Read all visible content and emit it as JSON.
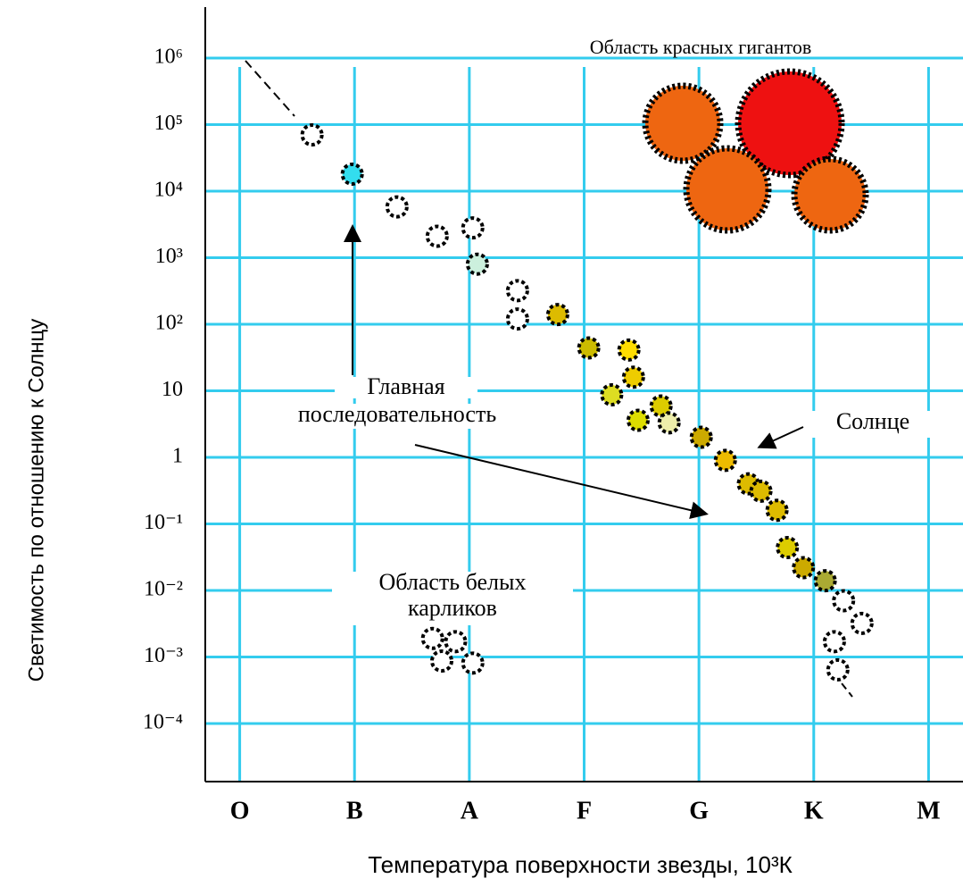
{
  "chart_data": {
    "type": "scatter",
    "xlabel": "Температура поверхности звезды, 10³К",
    "ylabel": "Светимость по отношению к Солнцу",
    "log_y": true,
    "grid": true,
    "xlim": [
      -0.3,
      6.3
    ],
    "xticks": [
      {
        "value": 0,
        "label": "O"
      },
      {
        "value": 1,
        "label": "B"
      },
      {
        "value": 2,
        "label": "A"
      },
      {
        "value": 3,
        "label": "F"
      },
      {
        "value": 4,
        "label": "G"
      },
      {
        "value": 5,
        "label": "K"
      },
      {
        "value": 6,
        "label": "M"
      }
    ],
    "ylim": [
      1e-05,
      5000000
    ],
    "yticks": [
      {
        "value": 1000000,
        "label": "10⁶"
      },
      {
        "value": 100000,
        "label": "10⁵"
      },
      {
        "value": 10000,
        "label": "10⁴"
      },
      {
        "value": 1000,
        "label": "10³"
      },
      {
        "value": 100,
        "label": "10²"
      },
      10,
      1,
      {
        "value": 0.1,
        "label": "10⁻¹"
      },
      {
        "value": 0.01,
        "label": "10⁻²"
      },
      {
        "value": 0.001,
        "label": "10⁻³"
      },
      {
        "value": 0.0001,
        "label": "10⁻⁴"
      }
    ],
    "x": [
      0.63,
      0.98,
      1.37,
      1.72,
      2.03,
      2.07,
      2.42,
      2.42,
      2.77,
      3.04,
      3.39,
      3.43,
      3.24,
      3.67,
      3.47,
      3.74,
      4.02,
      4.23,
      4.43,
      4.54,
      4.68,
      4.77,
      4.91,
      5.1,
      5.26,
      5.42,
      5.18,
      5.21,
      1.68,
      1.88,
      1.76,
      2.03
    ],
    "values": [
      70000,
      18000,
      5800,
      2100,
      2800,
      800,
      320,
      120,
      140,
      44,
      41,
      16,
      8.7,
      5.9,
      3.6,
      3.3,
      2,
      0.9,
      0.4,
      0.31,
      0.16,
      0.044,
      0.022,
      0.014,
      0.007,
      0.0032,
      0.0017,
      0.00064,
      0.0019,
      0.0017,
      0.00087,
      0.00081
    ],
    "colors": [
      "#ffffff",
      "#33ddee",
      "#ffffff",
      "#ffffff",
      "#ffffff",
      "#ccf0dd",
      "#ffffff",
      "#ffffff",
      "#ddbb00",
      "#ccbb00",
      "#ffdd00",
      "#eecc00",
      "#dddd22",
      "#ddcc00",
      "#dddd00",
      "#eeeeaa",
      "#ccaa00",
      "#eebb00",
      "#ddbb00",
      "#ddbb00",
      "#ddbb00",
      "#ddcc00",
      "#ccaa00",
      "#aaaa33",
      "#ffffff",
      "#ffffff",
      "#ffffff",
      "#ffffff",
      "#ffffff",
      "#ffffff",
      "#ffffff",
      "#ffffff"
    ],
    "annotations": [
      "Область красных гигантов",
      "Главная",
      "последовательность",
      "Солнце",
      "Область белых",
      "карликов"
    ]
  }
}
